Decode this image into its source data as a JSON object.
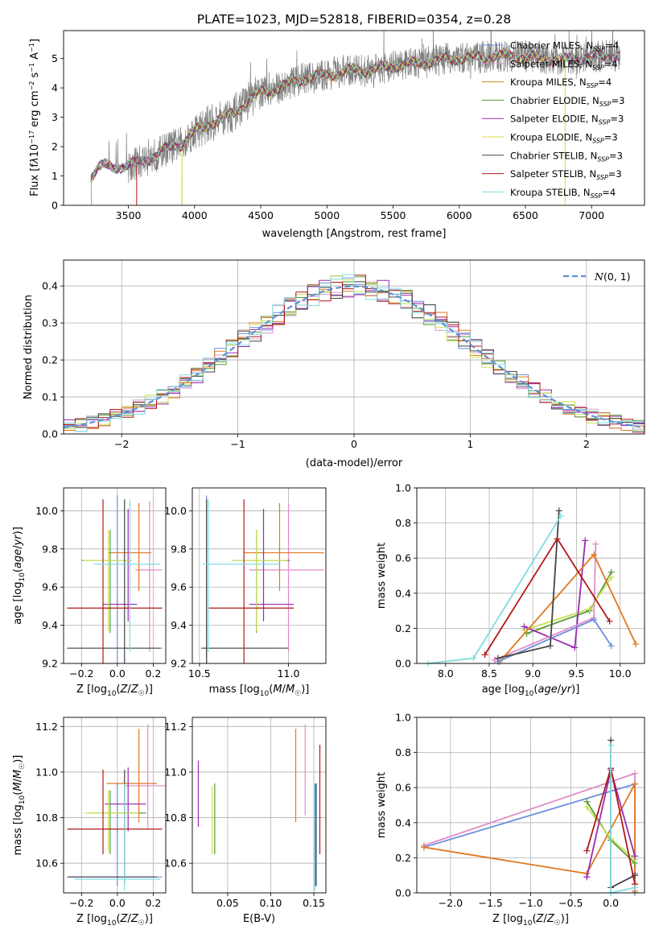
{
  "chart_data": [
    {
      "id": "spectrum",
      "type": "line",
      "title": "PLATE=1023, MJD=52818, FIBERID=0354, z=0.28",
      "xlabel": "wavelength [Angstrom, rest frame]",
      "ylabel_html": "Flux [f<tspan font-style='italic'>λ</tspan>10<tspan dy='-5' font-size='8'>−17</tspan><tspan dy='5'> erg cm</tspan><tspan dy='-5' font-size='8'>−2</tspan><tspan dy='5'> s</tspan><tspan dy='-5' font-size='8'>−1</tspan><tspan dy='5'> A</tspan><tspan dy='-5' font-size='8'>−1</tspan><tspan dy='5'>]</tspan>",
      "xlim": [
        3010,
        7400
      ],
      "ylim": [
        0,
        5.95
      ],
      "xticks": [
        3500,
        4000,
        4500,
        5000,
        5500,
        6000,
        6500,
        7000
      ],
      "yticks": [
        0,
        1,
        2,
        3,
        4,
        5
      ],
      "data_anchor": {
        "x": [
          3215,
          3300,
          3400,
          3500,
          3600,
          3700,
          3800,
          3900,
          4000,
          4100,
          4200,
          4300,
          4400,
          4500,
          4600,
          4700,
          4800,
          4900,
          5000,
          5100,
          5200,
          5300,
          5400,
          5500,
          5600,
          5700,
          5800,
          5900,
          6000,
          6200,
          6400,
          6600,
          6800,
          7000,
          7200
        ],
        "y": [
          1.0,
          1.35,
          1.3,
          1.35,
          1.5,
          1.7,
          1.95,
          2.1,
          2.5,
          2.75,
          2.95,
          3.15,
          3.55,
          3.85,
          3.95,
          4.1,
          4.3,
          4.35,
          4.45,
          4.5,
          4.6,
          4.6,
          4.65,
          4.75,
          4.8,
          4.85,
          4.9,
          5.0,
          5.0,
          5.05,
          5.1,
          5.0,
          4.95,
          5.05,
          5.1
        ]
      },
      "legend_position": "upper right",
      "legend": [
        {
          "label": "Chabrier MILES, N",
          "sub": "SSP",
          "suffix": "=4",
          "color": "#6b8fdc"
        },
        {
          "label": "Salpeter MILES, N",
          "sub": "SSP",
          "suffix": "=4",
          "color": "#d2a0c8"
        },
        {
          "label": "Kroupa MILES, N",
          "sub": "SSP",
          "suffix": "=4",
          "color": "#d4881e"
        },
        {
          "label": "Chabrier ELODIE, N",
          "sub": "SSP",
          "suffix": "=3",
          "color": "#5a9a3a"
        },
        {
          "label": "Salpeter ELODIE, N",
          "sub": "SSP",
          "suffix": "=3",
          "color": "#9a2ab0"
        },
        {
          "label": "Kroupa ELODIE, N",
          "sub": "SSP",
          "suffix": "=3",
          "color": "#e4d84a"
        },
        {
          "label": "Chabrier STELIB, N",
          "sub": "SSP",
          "suffix": "=3",
          "color": "#444444"
        },
        {
          "label": "Salpeter STELIB, N",
          "sub": "SSP",
          "suffix": "=3",
          "color": "#b01818"
        },
        {
          "label": "Kroupa STELIB, N",
          "sub": "SSP",
          "suffix": "=4",
          "color": "#80dce0"
        }
      ],
      "data_color": "#808080"
    },
    {
      "id": "residuals",
      "type": "histogram",
      "xlabel": "(data-model)/error",
      "ylabel": "Normed distribution",
      "xlim": [
        -2.5,
        2.5
      ],
      "ylim": [
        0,
        0.47
      ],
      "xticks": [
        -2,
        -1,
        0,
        1,
        2
      ],
      "yticks": [
        0.0,
        0.1,
        0.2,
        0.3,
        0.4
      ],
      "bin_width": 0.1,
      "legend_position": "upper right",
      "reference_curve": {
        "label": "N(0,1)",
        "color": "#5b8fd6"
      },
      "hist_colors": [
        "#6b8fdc",
        "#d2a0c8",
        "#e07820",
        "#5a9a3a",
        "#9a2ab0",
        "#c8e050",
        "#444444",
        "#b01818",
        "#80dce0"
      ]
    },
    {
      "id": "age_vs_Z",
      "type": "errorbar",
      "xlabel": "Z [log10(Z/Z☉)]",
      "ylabel": "age  [log10(age/yr)]",
      "xlim": [
        -0.3,
        0.27
      ],
      "ylim": [
        9.2,
        10.12
      ],
      "xticks": [
        -0.2,
        0.0,
        0.2
      ],
      "yticks": [
        9.2,
        9.4,
        9.6,
        9.8,
        10.0
      ],
      "points": [
        {
          "x": 0.0,
          "y": 9.28,
          "xerr": [
            0.28,
            0.25
          ],
          "yerr": [
            0.08,
            0.8
          ],
          "color": "#6b8fdc"
        },
        {
          "x": 0.18,
          "y": 9.69,
          "xerr": [
            0.08,
            0.07
          ],
          "yerr": [
            0.43,
            0.36
          ],
          "color": "#e08cc8"
        },
        {
          "x": 0.12,
          "y": 9.78,
          "xerr": [
            0.17,
            0.07
          ],
          "yerr": [
            0.2,
            0.26
          ],
          "color": "#e07820"
        },
        {
          "x": -0.04,
          "y": 9.74,
          "xerr": [
            0.16,
            0.12
          ],
          "yerr": [
            0.38,
            0.16
          ],
          "color": "#5a9a3a"
        },
        {
          "x": 0.06,
          "y": 9.51,
          "xerr": [
            0.14,
            0.05
          ],
          "yerr": [
            0.09,
            0.5
          ],
          "color": "#9a2ab0"
        },
        {
          "x": -0.05,
          "y": 9.74,
          "xerr": [
            0.14,
            0.13
          ],
          "yerr": [
            0.37,
            0.16
          ],
          "color": "#c8e050"
        },
        {
          "x": 0.04,
          "y": 9.28,
          "xerr": [
            0.32,
            0.2
          ],
          "yerr": [
            0.08,
            0.78
          ],
          "color": "#444444"
        },
        {
          "x": -0.08,
          "y": 9.49,
          "xerr": [
            0.2,
            0.33
          ],
          "yerr": [
            0.29,
            0.57
          ],
          "color": "#b01818"
        },
        {
          "x": 0.07,
          "y": 9.72,
          "xerr": [
            0.2,
            0.17
          ],
          "yerr": [
            0.46,
            0.34
          ],
          "color": "#80dce0"
        }
      ]
    },
    {
      "id": "age_vs_mass",
      "type": "errorbar",
      "xlabel": "mass [log10(M/M☉)]",
      "xlim": [
        10.46,
        11.21
      ],
      "ylim": [
        9.2,
        10.12
      ],
      "xticks": [
        10.5,
        11.0
      ],
      "yticks": [
        9.2,
        9.4,
        9.6,
        9.8,
        10.0
      ],
      "points": [
        {
          "x": 10.54,
          "y": 9.28,
          "xerr": [
            0.02,
            0.4
          ],
          "yerr": [
            0.08,
            0.8
          ],
          "color": "#6b8fdc"
        },
        {
          "x": 11.0,
          "y": 9.69,
          "xerr": [
            0.22,
            0.2
          ],
          "yerr": [
            0.43,
            0.35
          ],
          "color": "#e08cc8"
        },
        {
          "x": 10.95,
          "y": 9.78,
          "xerr": [
            0.2,
            0.25
          ],
          "yerr": [
            0.2,
            0.26
          ],
          "color": "#e07820"
        },
        {
          "x": 10.82,
          "y": 9.74,
          "xerr": [
            0.14,
            0.19
          ],
          "yerr": [
            0.38,
            0.16
          ],
          "color": "#5a9a3a"
        },
        {
          "x": 10.86,
          "y": 9.51,
          "xerr": [
            0.08,
            0.17
          ],
          "yerr": [
            0.09,
            0.5
          ],
          "color": "#9a2ab0"
        },
        {
          "x": 10.82,
          "y": 9.74,
          "xerr": [
            0.14,
            0.17
          ],
          "yerr": [
            0.37,
            0.16
          ],
          "color": "#c8e050"
        },
        {
          "x": 10.54,
          "y": 9.28,
          "xerr": [
            0.03,
            0.46
          ],
          "yerr": [
            0.08,
            0.78
          ],
          "color": "#444444"
        },
        {
          "x": 10.75,
          "y": 9.49,
          "xerr": [
            0.2,
            0.28
          ],
          "yerr": [
            0.29,
            0.57
          ],
          "color": "#b01818"
        },
        {
          "x": 10.55,
          "y": 9.72,
          "xerr": [
            0.03,
            0.4
          ],
          "yerr": [
            0.46,
            0.34
          ],
          "color": "#80dce0"
        }
      ]
    },
    {
      "id": "mass_weight_vs_age",
      "type": "line",
      "xlabel": "age  [log10(age/yr)]",
      "ylabel": "mass weight",
      "xlim": [
        7.67,
        10.28
      ],
      "ylim": [
        0,
        1
      ],
      "xticks": [
        8.0,
        8.5,
        9.0,
        9.5,
        10.0
      ],
      "yticks": [
        0.0,
        0.2,
        0.4,
        0.6,
        0.8,
        1.0
      ],
      "series": [
        {
          "color": "#5a9a3a",
          "x": [
            8.93,
            9.65,
            9.9
          ],
          "y": [
            0.17,
            0.3,
            0.52
          ]
        },
        {
          "color": "#c8e050",
          "x": [
            8.9,
            9.65,
            9.9
          ],
          "y": [
            0.19,
            0.31,
            0.49
          ]
        },
        {
          "color": "#9a2ab0",
          "x": [
            8.9,
            9.48,
            9.6
          ],
          "y": [
            0.21,
            0.09,
            0.7
          ]
        },
        {
          "color": "#e08cc8",
          "x": [
            8.56,
            9.7,
            9.72
          ],
          "y": [
            0.02,
            0.26,
            0.68
          ]
        },
        {
          "color": "#e07820",
          "x": [
            8.62,
            9.7,
            10.18
          ],
          "y": [
            0.01,
            0.62,
            0.11
          ]
        },
        {
          "color": "#6b8fdc",
          "x": [
            8.6,
            9.7,
            9.9
          ],
          "y": [
            0.01,
            0.25,
            0.1
          ]
        },
        {
          "color": "#444444",
          "x": [
            8.6,
            9.2,
            9.3
          ],
          "y": [
            0.03,
            0.1,
            0.87
          ]
        },
        {
          "color": "#b01818",
          "x": [
            8.45,
            9.28,
            9.88
          ],
          "y": [
            0.05,
            0.71,
            0.24
          ]
        },
        {
          "color": "#80dce0",
          "x": [
            7.8,
            8.32,
            9.32
          ],
          "y": [
            0.0,
            0.03,
            0.84
          ]
        }
      ]
    },
    {
      "id": "mass_vs_Z",
      "type": "errorbar",
      "xlabel": "Z [log10(Z/Z☉)]",
      "ylabel": "mass [log10(M/M☉)]",
      "xlim": [
        -0.3,
        0.27
      ],
      "ylim": [
        10.47,
        11.24
      ],
      "xticks": [
        -0.2,
        0.0,
        0.2
      ],
      "yticks": [
        10.6,
        10.8,
        11.0,
        11.2
      ],
      "points": [
        {
          "x": 0.0,
          "y": 10.54,
          "xerr": [
            0.27,
            0.25
          ],
          "yerr": [
            0.04,
            0.41
          ],
          "color": "#6b8fdc"
        },
        {
          "x": 0.17,
          "y": 10.94,
          "xerr": [
            0.13,
            0.1
          ],
          "yerr": [
            0.19,
            0.27
          ],
          "color": "#e08cc8"
        },
        {
          "x": 0.12,
          "y": 10.95,
          "xerr": [
            0.18,
            0.1
          ],
          "yerr": [
            0.17,
            0.24
          ],
          "color": "#e07820"
        },
        {
          "x": -0.04,
          "y": 10.82,
          "xerr": [
            0.11,
            0.2
          ],
          "yerr": [
            0.18,
            0.1
          ],
          "color": "#5a9a3a"
        },
        {
          "x": 0.06,
          "y": 10.86,
          "xerr": [
            0.13,
            0.1
          ],
          "yerr": [
            0.12,
            0.16
          ],
          "color": "#9a2ab0"
        },
        {
          "x": -0.05,
          "y": 10.82,
          "xerr": [
            0.13,
            0.17
          ],
          "yerr": [
            0.17,
            0.1
          ],
          "color": "#c8e050"
        },
        {
          "x": 0.04,
          "y": 10.54,
          "xerr": [
            0.32,
            0.18
          ],
          "yerr": [
            0.03,
            0.47
          ],
          "color": "#444444"
        },
        {
          "x": -0.08,
          "y": 10.75,
          "xerr": [
            0.2,
            0.33
          ],
          "yerr": [
            0.11,
            0.26
          ],
          "color": "#b01818"
        },
        {
          "x": 0.04,
          "y": 10.53,
          "xerr": [
            0.28,
            0.2
          ],
          "yerr": [
            0.05,
            0.42
          ],
          "color": "#80dce0"
        }
      ]
    },
    {
      "id": "mass_vs_EBV",
      "type": "errorbar",
      "xlabel": "E(B-V)",
      "xlim": [
        0.009,
        0.164
      ],
      "ylim": [
        10.47,
        11.24
      ],
      "xticks": [
        0.05,
        0.1,
        0.15
      ],
      "yticks": [
        10.6,
        10.8,
        11.0,
        11.2
      ],
      "points": [
        {
          "x": 0.153,
          "y": 10.54,
          "yerr": [
            0.04,
            0.41
          ],
          "color": "#6b8fdc"
        },
        {
          "x": 0.14,
          "y": 10.94,
          "yerr": [
            0.13,
            0.27
          ],
          "color": "#e08cc8"
        },
        {
          "x": 0.129,
          "y": 10.95,
          "yerr": [
            0.17,
            0.24
          ],
          "color": "#e07820"
        },
        {
          "x": 0.035,
          "y": 10.82,
          "yerr": [
            0.18,
            0.13
          ],
          "color": "#5a9a3a"
        },
        {
          "x": 0.016,
          "y": 10.86,
          "yerr": [
            0.1,
            0.19
          ],
          "color": "#9a2ab0"
        },
        {
          "x": 0.032,
          "y": 10.82,
          "yerr": [
            0.18,
            0.12
          ],
          "color": "#c8e050"
        },
        {
          "x": 0.152,
          "y": 10.54,
          "yerr": [
            0.04,
            0.41
          ],
          "color": "#444444"
        },
        {
          "x": 0.157,
          "y": 10.75,
          "yerr": [
            0.11,
            0.37
          ],
          "color": "#b01818"
        },
        {
          "x": 0.151,
          "y": 10.53,
          "yerr": [
            0.05,
            0.42
          ],
          "color": "#80dce0"
        }
      ]
    },
    {
      "id": "mass_weight_vs_Z",
      "type": "line",
      "xlabel": "Z [log10(Z/Z☉)]",
      "ylabel": "mass weight",
      "xlim": [
        -2.42,
        0.42
      ],
      "ylim": [
        0,
        1
      ],
      "xticks": [
        -2.0,
        -1.5,
        -1.0,
        -0.5,
        0.0
      ],
      "yticks": [
        0.0,
        0.2,
        0.4,
        0.6,
        0.8,
        1.0
      ],
      "series": [
        {
          "color": "#6b8fdc",
          "x": [
            -2.33,
            0.3,
            0.3,
            0.3
          ],
          "y": [
            0.26,
            0.62,
            0.11,
            0.0
          ]
        },
        {
          "color": "#e08cc8",
          "x": [
            -2.33,
            0.3,
            0.3,
            0.3
          ],
          "y": [
            0.27,
            0.68,
            0.1,
            0.01
          ]
        },
        {
          "color": "#e07820",
          "x": [
            -2.33,
            -0.3,
            0.3,
            0.3,
            0.3
          ],
          "y": [
            0.26,
            0.11,
            0.62,
            0.05,
            0.01
          ]
        },
        {
          "color": "#5a9a3a",
          "x": [
            -0.3,
            0.0,
            0.3
          ],
          "y": [
            0.52,
            0.3,
            0.17
          ]
        },
        {
          "color": "#c8e050",
          "x": [
            -0.3,
            0.0,
            0.3
          ],
          "y": [
            0.49,
            0.31,
            0.19
          ]
        },
        {
          "color": "#9a2ab0",
          "x": [
            -0.3,
            0.0,
            0.3
          ],
          "y": [
            0.09,
            0.7,
            0.21
          ]
        },
        {
          "color": "#444444",
          "x": [
            0.0,
            0.0,
            0.3
          ],
          "y": [
            0.87,
            0.03,
            0.1
          ]
        },
        {
          "color": "#b01818",
          "x": [
            -0.3,
            0.0,
            0.3
          ],
          "y": [
            0.24,
            0.71,
            0.05
          ]
        },
        {
          "color": "#80dce0",
          "x": [
            0.0,
            0.0,
            0.3
          ],
          "y": [
            0.84,
            0.0,
            0.03
          ]
        }
      ]
    }
  ]
}
